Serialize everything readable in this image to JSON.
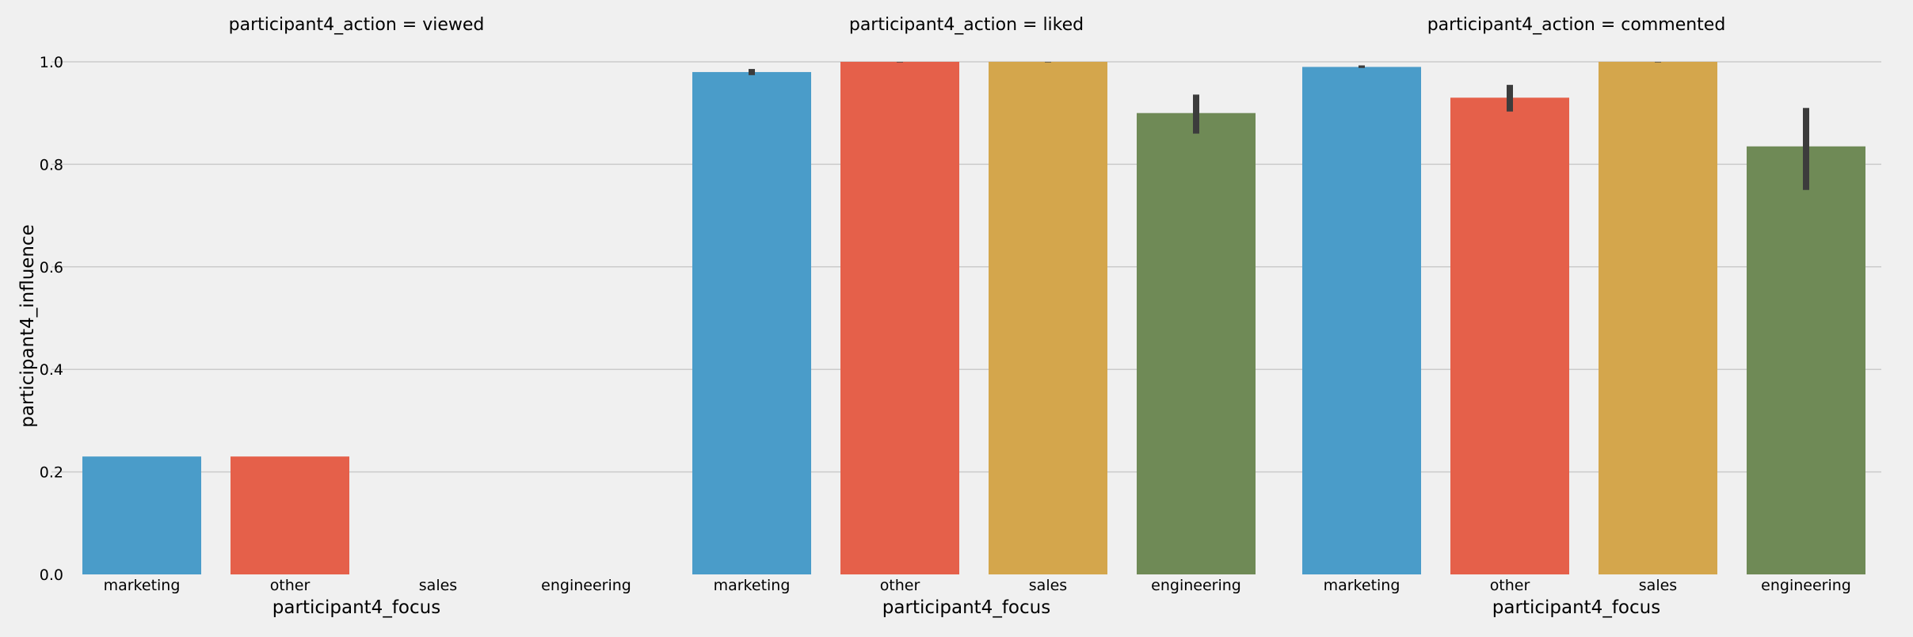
{
  "chart_data": {
    "type": "bar",
    "style": "faceted bar chart with error bars",
    "ylabel": "participant4_influence",
    "xlabel": "participant4_focus",
    "ylim": [
      0,
      1.0
    ],
    "yticks": [
      "0.0",
      "0.2",
      "0.4",
      "0.6",
      "0.8",
      "1.0"
    ],
    "grid": true,
    "categories": [
      "marketing",
      "other",
      "sales",
      "engineering"
    ],
    "colors": [
      "#4a9cc9",
      "#e5604a",
      "#d4a64c",
      "#6f8a56"
    ],
    "errorbar_color": "#3c3c3c",
    "facets": [
      {
        "title": "participant4_action = viewed",
        "values": [
          0.23,
          0.23,
          0,
          0
        ],
        "err_low": [
          0.23,
          0.23,
          0,
          0
        ],
        "err_high": [
          0.23,
          0.23,
          0,
          0
        ]
      },
      {
        "title": "participant4_action = liked",
        "values": [
          0.98,
          1.0,
          1.0,
          0.9
        ],
        "err_low": [
          0.974,
          0.999,
          0.999,
          0.86
        ],
        "err_high": [
          0.986,
          1.0,
          1.0,
          0.936
        ]
      },
      {
        "title": "participant4_action = commented",
        "values": [
          0.99,
          0.93,
          1.0,
          0.835
        ],
        "err_low": [
          0.988,
          0.903,
          0.999,
          0.75
        ],
        "err_high": [
          0.993,
          0.955,
          1.0,
          0.91
        ]
      }
    ]
  }
}
